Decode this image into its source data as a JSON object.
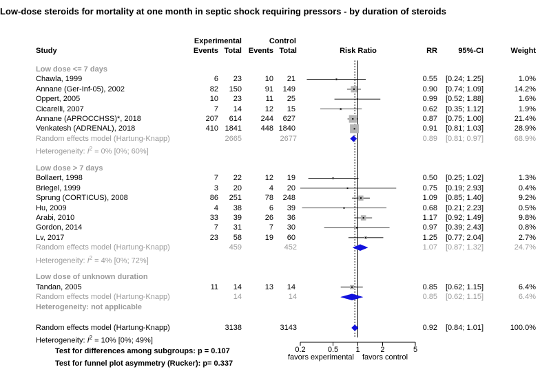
{
  "title": "Low-dose steroids for mortality at one month in septic shock requiring pressors - by duration of steroids",
  "header": {
    "study": "Study",
    "experimental": "Experimental",
    "control": "Control",
    "events_e": "Events",
    "total_e": "Total",
    "events_c": "Events",
    "total_c": "Total",
    "risk_ratio": "Risk Ratio",
    "rr": "RR",
    "ci": "95%-CI",
    "weight": "Weight"
  },
  "colors": {
    "diamond_overall": "#1111dd",
    "box": "#b5b5b5",
    "grey_text": "#9a9a9a"
  },
  "groups": [
    {
      "label": "Low dose <= 7 days",
      "studies": [
        {
          "name": "Chawla, 1999",
          "events_e": "6",
          "total_e": "23",
          "events_c": "10",
          "total_c": "21",
          "rr": "0.55",
          "ci": "[0.24; 1.25]",
          "weight": "1.0%"
        },
        {
          "name": "Annane (Ger-Inf-05), 2002",
          "events_e": "82",
          "total_e": "150",
          "events_c": "91",
          "total_c": "149",
          "rr": "0.90",
          "ci": "[0.74; 1.09]",
          "weight": "14.2%"
        },
        {
          "name": "Oppert, 2005",
          "events_e": "10",
          "total_e": "23",
          "events_c": "11",
          "total_c": "25",
          "rr": "0.99",
          "ci": "[0.52; 1.88]",
          "weight": "1.6%"
        },
        {
          "name": "Cicarelli, 2007",
          "events_e": "7",
          "total_e": "14",
          "events_c": "12",
          "total_c": "15",
          "rr": "0.62",
          "ci": "[0.35; 1.12]",
          "weight": "1.9%"
        },
        {
          "name": "Annane (APROCCHSS)*, 2018",
          "events_e": "207",
          "total_e": "614",
          "events_c": "244",
          "total_c": "627",
          "rr": "0.87",
          "ci": "[0.75; 1.00]",
          "weight": "21.4%"
        },
        {
          "name": "Venkatesh  (ADRENAL), 2018",
          "events_e": "410",
          "total_e": "1841",
          "events_c": "448",
          "total_c": "1840",
          "rr": "0.91",
          "ci": "[0.81; 1.03]",
          "weight": "28.9%"
        }
      ],
      "pooled": {
        "label": "Random effects model  (Hartung-Knapp)",
        "total_e": "2665",
        "total_c": "2677",
        "rr": "0.89",
        "ci": "[0.81; 0.97]",
        "weight": "68.9%"
      },
      "heterogeneity": {
        "prefix": "Heterogeneity: ",
        "i2": "I",
        "sup": "2",
        "rest": " = 0% [0%; 60%]"
      }
    },
    {
      "label": "Low dose > 7 days",
      "studies": [
        {
          "name": "Bollaert, 1998",
          "events_e": "7",
          "total_e": "22",
          "events_c": "12",
          "total_c": "19",
          "rr": "0.50",
          "ci": "[0.25; 1.02]",
          "weight": "1.3%"
        },
        {
          "name": "Briegel, 1999",
          "events_e": "3",
          "total_e": "20",
          "events_c": "4",
          "total_c": "20",
          "rr": "0.75",
          "ci": "[0.19; 2.93]",
          "weight": "0.4%"
        },
        {
          "name": "Sprung (CORTICUS), 2008",
          "events_e": "86",
          "total_e": "251",
          "events_c": "78",
          "total_c": "248",
          "rr": "1.09",
          "ci": "[0.85; 1.40]",
          "weight": "9.2%"
        },
        {
          "name": "Hu, 2009",
          "events_e": "4",
          "total_e": "38",
          "events_c": "6",
          "total_c": "39",
          "rr": "0.68",
          "ci": "[0.21; 2.23]",
          "weight": "0.5%"
        },
        {
          "name": "Arabi, 2010",
          "events_e": "33",
          "total_e": "39",
          "events_c": "26",
          "total_c": "36",
          "rr": "1.17",
          "ci": "[0.92; 1.49]",
          "weight": "9.8%"
        },
        {
          "name": "Gordon, 2014",
          "events_e": "7",
          "total_e": "31",
          "events_c": "7",
          "total_c": "30",
          "rr": "0.97",
          "ci": "[0.39; 2.43]",
          "weight": "0.8%"
        },
        {
          "name": "Lv, 2017",
          "events_e": "23",
          "total_e": "58",
          "events_c": "19",
          "total_c": "60",
          "rr": "1.25",
          "ci": "[0.77; 2.04]",
          "weight": "2.7%"
        }
      ],
      "pooled": {
        "label": "Random effects model  (Hartung-Knapp)",
        "total_e": "459",
        "total_c": "452",
        "rr": "1.07",
        "ci": "[0.87; 1.32]",
        "weight": "24.7%"
      },
      "heterogeneity": {
        "prefix": "Heterogeneity: ",
        "i2": "I",
        "sup": "2",
        "rest": " = 4% [0%; 72%]"
      }
    },
    {
      "label": "Low dose of unknown duration",
      "studies": [
        {
          "name": "Tandan, 2005",
          "events_e": "11",
          "total_e": "14",
          "events_c": "13",
          "total_c": "14",
          "rr": "0.85",
          "ci": "[0.62; 1.15]",
          "weight": "6.4%"
        }
      ],
      "pooled": {
        "label": "Random effects model  (Hartung-Knapp)",
        "total_e": "14",
        "total_c": "14",
        "rr": "0.85",
        "ci": "[0.62; 1.15]",
        "weight": "6.4%"
      },
      "heterogeneity_text": "Heterogeneity: not applicable"
    }
  ],
  "overall": {
    "label": "Random effects model  (Hartung-Knapp)",
    "total_e": "3138",
    "total_c": "3143",
    "rr": "0.92",
    "ci": "[0.84; 1.01]",
    "weight": "100.0%",
    "heterogeneity": {
      "prefix": "Heterogeneity: ",
      "i2": "I",
      "sup": "2",
      "rest": " = 10% [0%; 49%]"
    }
  },
  "tests": {
    "subgroups": "Test for differences among subgroups: p = 0.107",
    "funnel": "Test for funnel plot asymmetry (Rucker): p= 0.337"
  },
  "axis": {
    "favors_left": "favors experimental",
    "favors_right": "favors control"
  },
  "chart_data": {
    "type": "forest",
    "scale": "log",
    "xlim": [
      0.2,
      5
    ],
    "ticks": [
      0.2,
      0.5,
      1,
      2,
      5
    ],
    "tick_labels": [
      "0.2",
      "0.5",
      "1",
      "2",
      "5"
    ],
    "reference_line": 1,
    "overall_estimate": 0.92,
    "studies": [
      {
        "rr": 0.55,
        "lo": 0.24,
        "hi": 1.25,
        "weight": 1.0
      },
      {
        "rr": 0.9,
        "lo": 0.74,
        "hi": 1.09,
        "weight": 14.2
      },
      {
        "rr": 0.99,
        "lo": 0.52,
        "hi": 1.88,
        "weight": 1.6
      },
      {
        "rr": 0.62,
        "lo": 0.35,
        "hi": 1.12,
        "weight": 1.9
      },
      {
        "rr": 0.87,
        "lo": 0.75,
        "hi": 1.0,
        "weight": 21.4
      },
      {
        "rr": 0.91,
        "lo": 0.81,
        "hi": 1.03,
        "weight": 28.9
      },
      {
        "rr": 0.5,
        "lo": 0.25,
        "hi": 1.02,
        "weight": 1.3
      },
      {
        "rr": 0.75,
        "lo": 0.19,
        "hi": 2.93,
        "weight": 0.4
      },
      {
        "rr": 1.09,
        "lo": 0.85,
        "hi": 1.4,
        "weight": 9.2
      },
      {
        "rr": 0.68,
        "lo": 0.21,
        "hi": 2.23,
        "weight": 0.5
      },
      {
        "rr": 1.17,
        "lo": 0.92,
        "hi": 1.49,
        "weight": 9.8
      },
      {
        "rr": 0.97,
        "lo": 0.39,
        "hi": 2.43,
        "weight": 0.8
      },
      {
        "rr": 1.25,
        "lo": 0.77,
        "hi": 2.04,
        "weight": 2.7
      },
      {
        "rr": 0.85,
        "lo": 0.62,
        "hi": 1.15,
        "weight": 6.4
      }
    ],
    "pooled": [
      {
        "rr": 0.89,
        "lo": 0.81,
        "hi": 0.97
      },
      {
        "rr": 1.07,
        "lo": 0.87,
        "hi": 1.32
      },
      {
        "rr": 0.85,
        "lo": 0.62,
        "hi": 1.15
      }
    ],
    "overall": {
      "rr": 0.92,
      "lo": 0.84,
      "hi": 1.01
    }
  }
}
